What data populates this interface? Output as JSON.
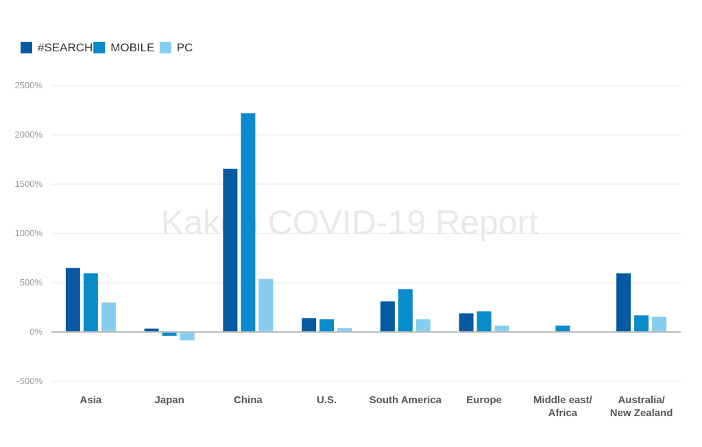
{
  "watermark": "Kakeo COVID-19 Report",
  "colors": {
    "search": "#0759a4",
    "mobile": "#0a8bcc",
    "pc": "#86cef0",
    "grid": "#e6e6e6",
    "baseline": "#bbbbbb"
  },
  "chart_data": {
    "type": "bar",
    "categories": [
      [
        "Asia"
      ],
      [
        "Japan"
      ],
      [
        "China"
      ],
      [
        "U.S."
      ],
      [
        "South America"
      ],
      [
        "Europe"
      ],
      [
        "Middle east/",
        "Africa"
      ],
      [
        "Australia/",
        "New Zealand"
      ]
    ],
    "series": [
      {
        "name": "#SEARCH",
        "color_key": "search",
        "values": [
          650,
          35,
          1655,
          140,
          310,
          190,
          0,
          595
        ]
      },
      {
        "name": "MOBILE",
        "color_key": "mobile",
        "values": [
          595,
          -40,
          2220,
          130,
          435,
          210,
          65,
          170
        ]
      },
      {
        "name": "PC",
        "color_key": "pc",
        "values": [
          300,
          -85,
          540,
          40,
          130,
          65,
          0,
          155
        ]
      }
    ],
    "yticks": [
      "2500%",
      "2000%",
      "1500%",
      "1000%",
      "500%",
      "0%",
      "-500%"
    ],
    "ytick_values": [
      2500,
      2000,
      1500,
      1000,
      500,
      0,
      -500
    ],
    "ylim": [
      -500,
      2500
    ],
    "grid": true,
    "legend_position": "top-left",
    "title": "",
    "xlabel": "",
    "ylabel": ""
  }
}
